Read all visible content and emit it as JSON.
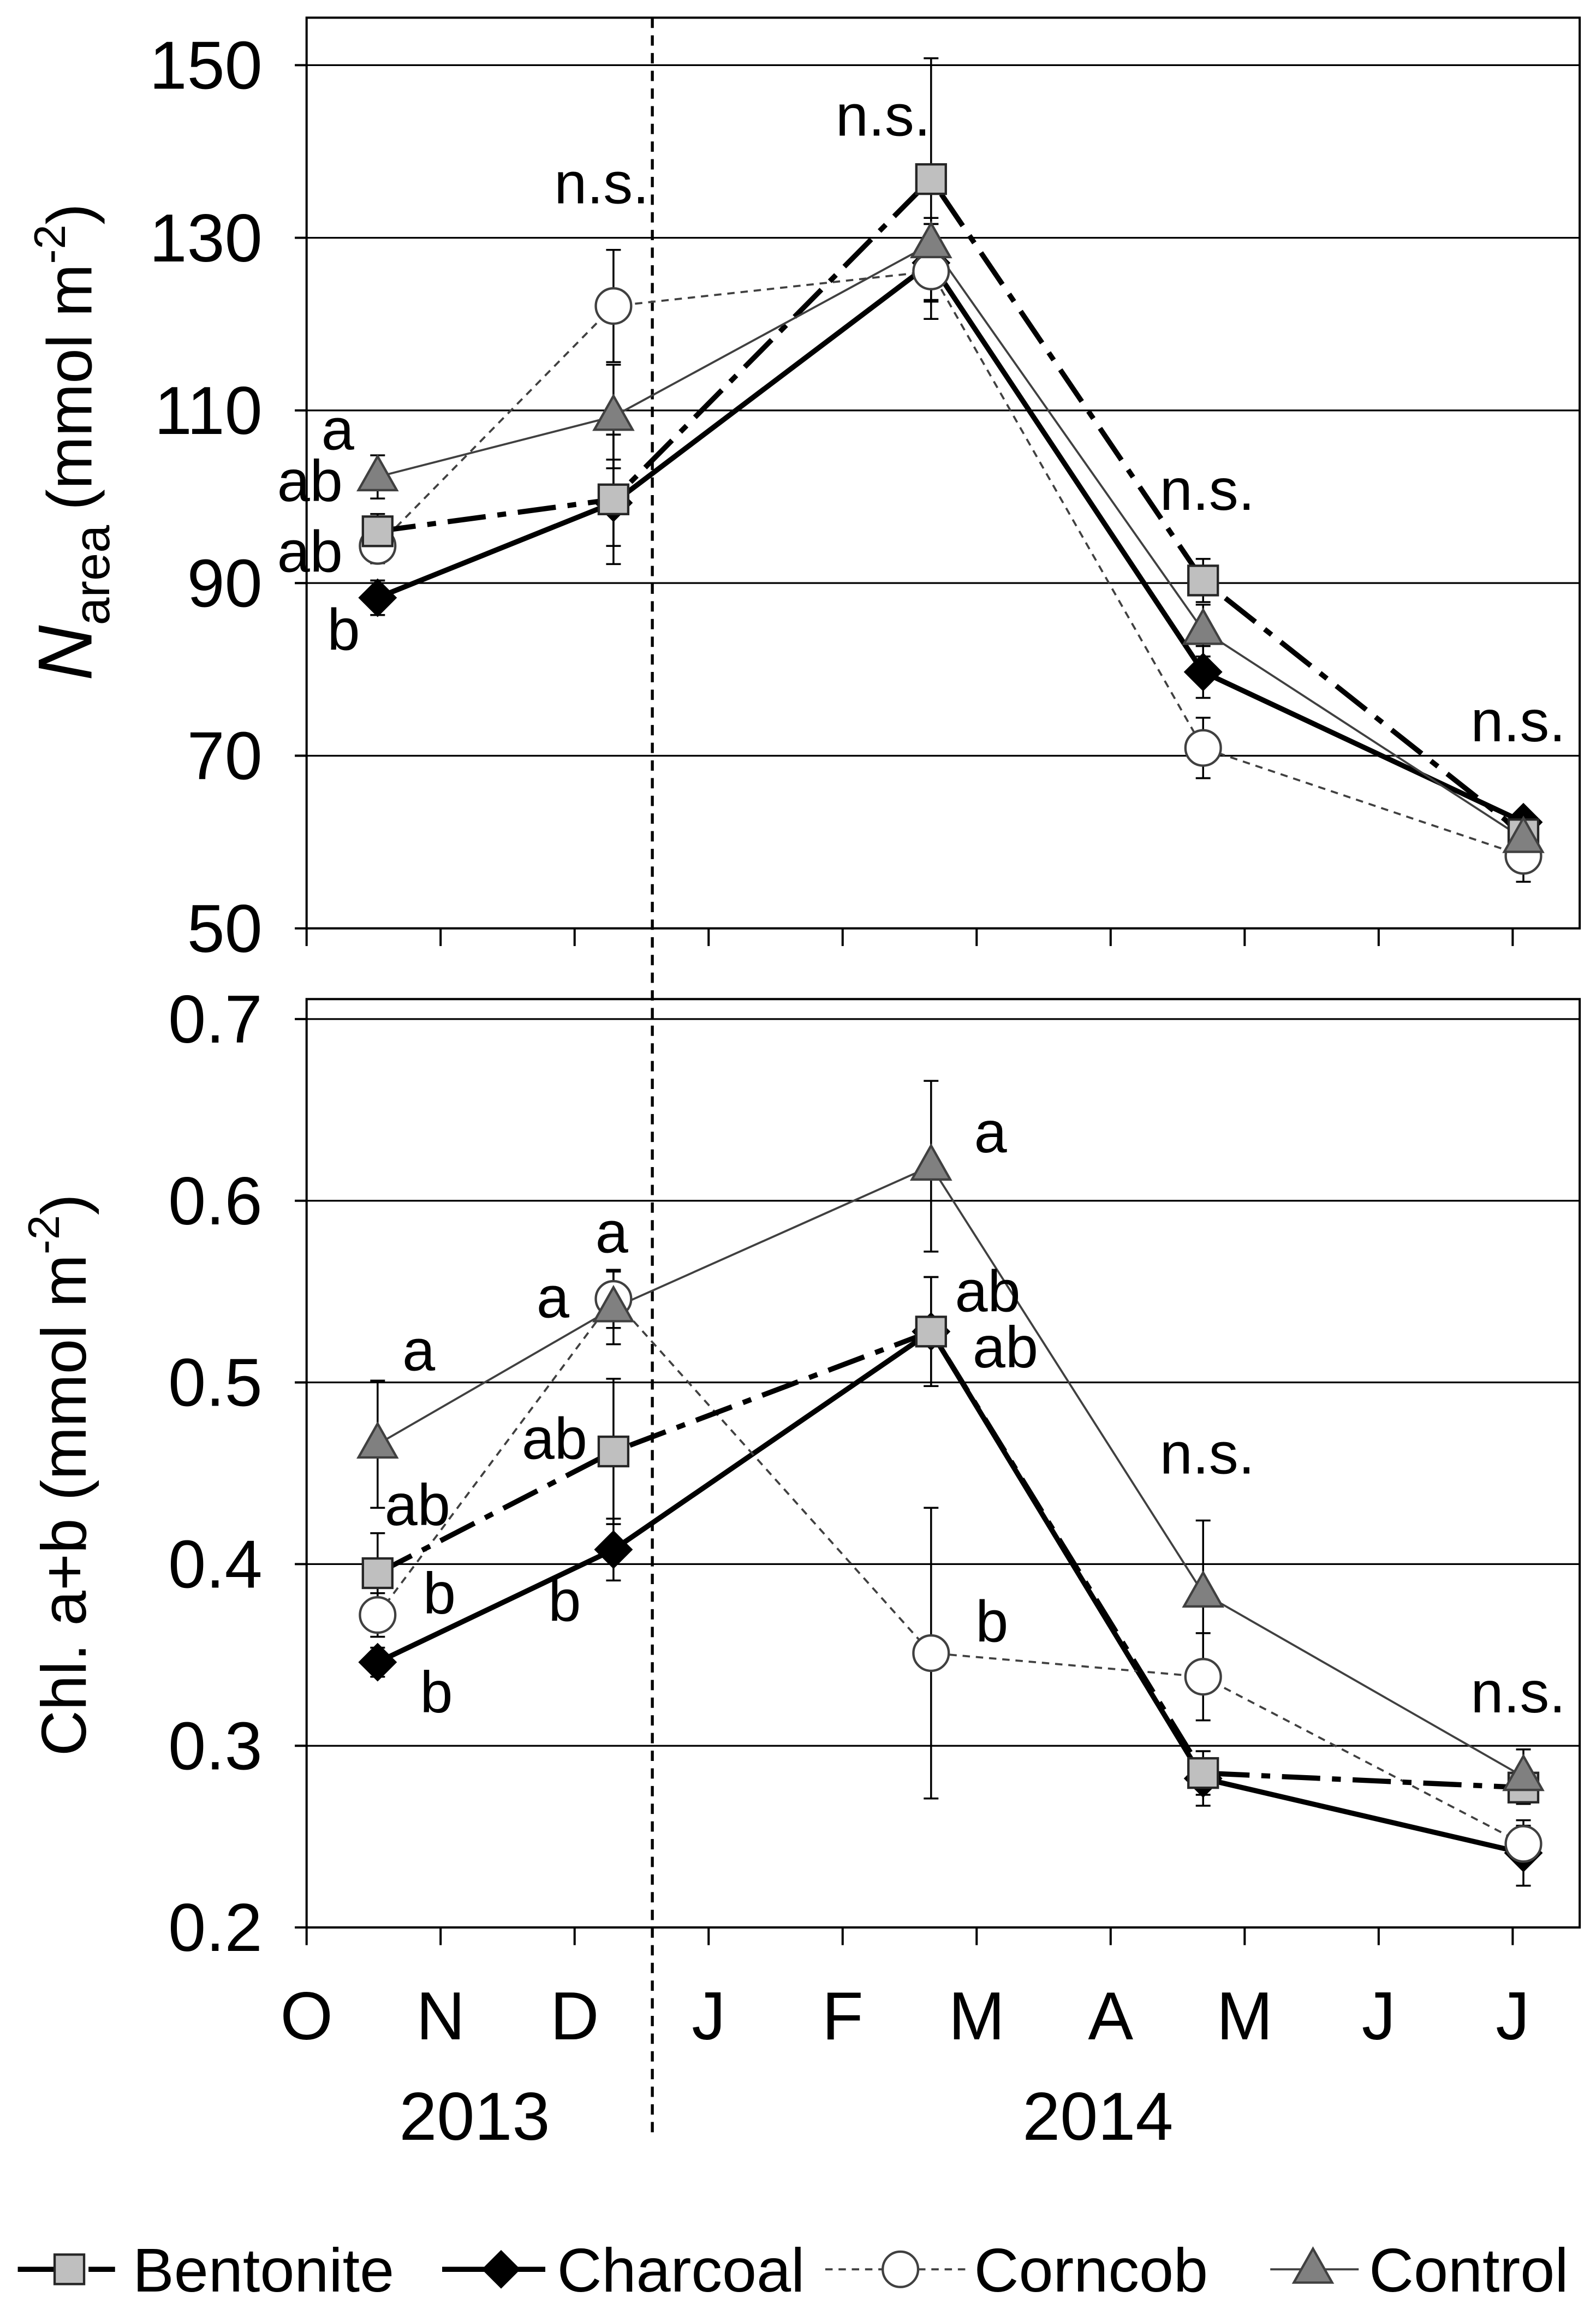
{
  "chart_data": {
    "type": "line",
    "x": [
      0.53,
      2.29,
      4.66,
      6.69,
      9.08
    ],
    "xlim": [
      0,
      9.5
    ],
    "x_ticks": [
      0,
      1,
      2,
      3,
      4,
      5,
      6,
      7,
      8,
      9
    ],
    "x_tick_labels": [
      "O",
      "N",
      "D",
      "J",
      "F",
      "M",
      "A",
      "M",
      "J",
      "J"
    ],
    "years": [
      "2013",
      "2014"
    ],
    "year_boundary": 2.58,
    "series": [
      {
        "name": "Bentonite",
        "fill": "#bfbfbf",
        "stroke": "#262626"
      },
      {
        "name": "Charcoal",
        "fill": "#000000",
        "stroke": "#000000"
      },
      {
        "name": "Corncob",
        "fill": "#ffffff",
        "stroke": "#404040"
      },
      {
        "name": "Control",
        "fill": "#808080",
        "stroke": "#404040"
      }
    ],
    "panels": [
      {
        "ylabel": {
          "symbol": "N",
          "subscript": "area",
          "unit": "(mmol m",
          "sup": "-2",
          "close": ")"
        },
        "ylim": [
          50,
          155.5
        ],
        "yticks": [
          150,
          130,
          110,
          90,
          70,
          50
        ],
        "ytick_labels": [
          "150",
          "130",
          "110",
          "90",
          "70",
          "50"
        ],
        "grid": true,
        "series": [
          {
            "values": [
              96.0,
              99.7,
              136.8,
              90.3,
              60.9
            ],
            "err": [
              2.0,
              7.5,
              14.0,
              2.5,
              1.5
            ]
          },
          {
            "values": [
              88.3,
              99.3,
              127.1,
              79.7,
              62.3
            ],
            "err": [
              2.0,
              5.0,
              4.5,
              3.0,
              1.0
            ]
          },
          {
            "values": [
              94.3,
              122.1,
              126.1,
              70.9,
              58.4
            ],
            "err": [
              2.0,
              6.5,
              5.5,
              3.5,
              3.0
            ]
          },
          {
            "values": [
              102.3,
              109.3,
              129.3,
              84.5,
              60.4
            ],
            "err": [
              2.5,
              6.0,
              3.0,
              3.0,
              2.0
            ]
          }
        ],
        "annotations": [
          "a",
          "ab",
          "ab",
          "b",
          "n.s.",
          "n.s.",
          "n.s.",
          "n.s."
        ]
      },
      {
        "ylabel": {
          "text": "Chl. a+b (mmol m",
          "sup": "-2",
          "close": ")"
        },
        "ylim": [
          0.2,
          0.711
        ],
        "yticks": [
          0.7,
          0.6,
          0.5,
          0.4,
          0.3,
          0.2
        ],
        "ytick_labels": [
          "0.7",
          "0.6",
          "0.5",
          "0.4",
          "0.3",
          "0.2"
        ],
        "grid": true,
        "series": [
          {
            "values": [
              0.395,
              0.462,
              0.528,
              0.285,
              0.277
            ],
            "err": [
              0.022,
              0.04,
              0.03,
              0.012,
              0.008
            ]
          },
          {
            "values": [
              0.346,
              0.408,
              0.528,
              0.282,
              0.241
            ],
            "err": [
              0.008,
              0.017,
              0.03,
              0.015,
              0.018
            ]
          },
          {
            "values": [
              0.372,
              0.546,
              0.351,
              0.338,
              0.246
            ],
            "err": [
              0.012,
              0.016,
              0.08,
              0.024,
              0.01
            ]
          },
          {
            "values": [
              0.466,
              0.541,
              0.619,
              0.384,
              0.283
            ],
            "err": [
              0.035,
              0.02,
              0.047,
              0.04,
              0.015
            ]
          }
        ],
        "annotations": [
          "a",
          "ab",
          "b",
          "b",
          "a",
          "a",
          "ab",
          "b",
          "a",
          "ab",
          "ab",
          "b",
          "n.s.",
          "n.s."
        ]
      }
    ]
  }
}
